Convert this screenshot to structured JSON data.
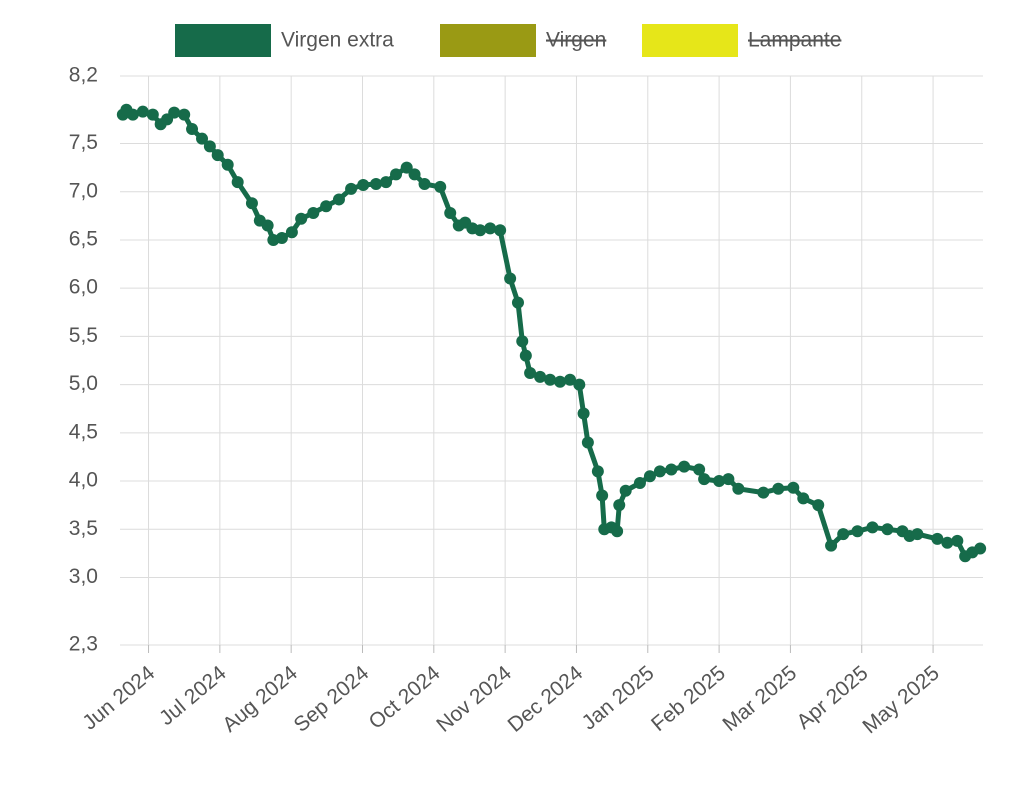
{
  "chart_data": {
    "type": "line",
    "x": [
      -0.36,
      -0.31,
      -0.22,
      -0.08,
      0.06,
      0.17,
      0.26,
      0.36,
      0.5,
      0.61,
      0.75,
      0.86,
      0.97,
      1.11,
      1.25,
      1.45,
      1.56,
      1.67,
      1.75,
      1.87,
      2.01,
      2.14,
      2.31,
      2.49,
      2.67,
      2.84,
      3.01,
      3.19,
      3.33,
      3.47,
      3.62,
      3.73,
      3.87,
      4.09,
      4.23,
      4.35,
      4.44,
      4.54,
      4.65,
      4.79,
      4.93,
      5.07,
      5.18,
      5.24,
      5.29,
      5.35,
      5.49,
      5.63,
      5.77,
      5.91,
      6.04,
      6.1,
      6.16,
      6.3,
      6.36,
      6.39,
      6.49,
      6.57,
      6.6,
      6.69,
      6.89,
      7.03,
      7.17,
      7.33,
      7.51,
      7.72,
      7.79,
      8.0,
      8.13,
      8.27,
      8.62,
      8.83,
      9.04,
      9.18,
      9.39,
      9.57,
      9.74,
      9.94,
      10.15,
      10.36,
      10.57,
      10.67,
      10.78,
      11.06,
      11.2,
      11.34,
      11.45,
      11.55,
      11.66
    ],
    "series": [
      {
        "name": "Virgen extra",
        "color": "#166b4a",
        "values": [
          7.8,
          7.85,
          7.8,
          7.83,
          7.8,
          7.7,
          7.75,
          7.82,
          7.8,
          7.65,
          7.55,
          7.47,
          7.38,
          7.28,
          7.1,
          6.88,
          6.7,
          6.65,
          6.5,
          6.52,
          6.58,
          6.72,
          6.78,
          6.85,
          6.92,
          7.03,
          7.07,
          7.08,
          7.1,
          7.18,
          7.25,
          7.18,
          7.08,
          7.05,
          6.78,
          6.65,
          6.68,
          6.62,
          6.6,
          6.62,
          6.6,
          6.1,
          5.85,
          5.45,
          5.3,
          5.12,
          5.08,
          5.05,
          5.03,
          5.05,
          5.0,
          4.7,
          4.4,
          4.1,
          3.85,
          3.5,
          3.52,
          3.48,
          3.75,
          3.9,
          3.98,
          4.05,
          4.1,
          4.12,
          4.15,
          4.12,
          4.02,
          4.0,
          4.02,
          3.92,
          3.88,
          3.92,
          3.93,
          3.82,
          3.75,
          3.33,
          3.45,
          3.48,
          3.52,
          3.5,
          3.48,
          3.43,
          3.45,
          3.4,
          3.36,
          3.38,
          3.22,
          3.26,
          3.3
        ]
      },
      {
        "name": "Virgen",
        "color": "#9a9a14",
        "hidden": true
      },
      {
        "name": "Lampante",
        "color": "#e6e619",
        "hidden": true
      }
    ],
    "xlim": [
      -0.4,
      11.7
    ],
    "xticks": [
      {
        "value": 0,
        "label": "Jun 2024"
      },
      {
        "value": 1,
        "label": "Jul 2024"
      },
      {
        "value": 2,
        "label": "Aug 2024"
      },
      {
        "value": 3,
        "label": "Sep 2024"
      },
      {
        "value": 4,
        "label": "Oct 2024"
      },
      {
        "value": 5,
        "label": "Nov 2024"
      },
      {
        "value": 6,
        "label": "Dec 2024"
      },
      {
        "value": 7,
        "label": "Jan 2025"
      },
      {
        "value": 8,
        "label": "Feb 2025"
      },
      {
        "value": 9,
        "label": "Mar 2025"
      },
      {
        "value": 10,
        "label": "Apr 2025"
      },
      {
        "value": 11,
        "label": "May 2025"
      }
    ],
    "ylim": [
      2.3,
      8.2
    ],
    "yticks": [
      {
        "value": 2.3,
        "label": "2,3"
      },
      {
        "value": 3.0,
        "label": "3,0"
      },
      {
        "value": 3.5,
        "label": "3,5"
      },
      {
        "value": 4.0,
        "label": "4,0"
      },
      {
        "value": 4.5,
        "label": "4,5"
      },
      {
        "value": 5.0,
        "label": "5,0"
      },
      {
        "value": 5.5,
        "label": "5,5"
      },
      {
        "value": 6.0,
        "label": "6,0"
      },
      {
        "value": 6.5,
        "label": "6,5"
      },
      {
        "value": 7.0,
        "label": "7,0"
      },
      {
        "value": 7.5,
        "label": "7,5"
      },
      {
        "value": 8.2,
        "label": "8,2"
      }
    ],
    "grid": true,
    "legend": "top"
  }
}
